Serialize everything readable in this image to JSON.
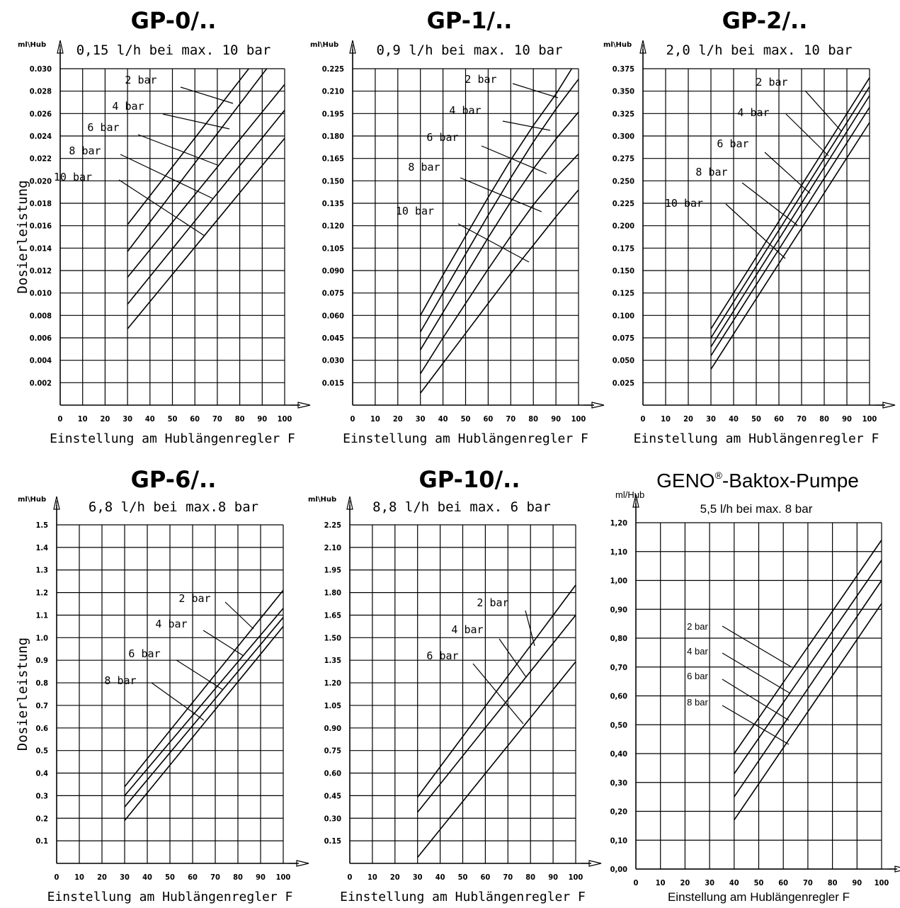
{
  "y_axis_label": "Dosierleistung",
  "chart_data": [
    {
      "type": "line",
      "title": "GP-0/..",
      "subtitle": "0,15 l/h bei max. 10 bar",
      "unit": "ml\\Hub",
      "xlabel": "Einstellung am Hublängenregler F",
      "xlim": [
        0,
        100
      ],
      "ylim": [
        0,
        0.03
      ],
      "x_ticks": [
        "0",
        "10",
        "20",
        "30",
        "40",
        "50",
        "60",
        "70",
        "80",
        "90",
        "100"
      ],
      "y_ticks": [
        "0.002",
        "0.004",
        "0.006",
        "0.008",
        "0.010",
        "0.012",
        "0.014",
        "0.016",
        "0.018",
        "0.020",
        "0.022",
        "0.024",
        "0.026",
        "0.028",
        "0.030"
      ],
      "series": [
        {
          "name": "2 bar",
          "x": [
            30,
            84
          ],
          "y": [
            0.0161,
            0.03
          ]
        },
        {
          "name": "4 bar",
          "x": [
            30,
            92
          ],
          "y": [
            0.0137,
            0.03
          ]
        },
        {
          "name": "6 bar",
          "x": [
            30,
            100
          ],
          "y": [
            0.0114,
            0.0286
          ]
        },
        {
          "name": "8 bar",
          "x": [
            30,
            100
          ],
          "y": [
            0.009,
            0.0263
          ]
        },
        {
          "name": "10 bar",
          "x": [
            30,
            100
          ],
          "y": [
            0.0068,
            0.0238
          ]
        }
      ]
    },
    {
      "type": "line",
      "title": "GP-1/..",
      "subtitle": "0,9 l/h bei max. 10 bar",
      "unit": "ml\\Hub",
      "xlabel": "Einstellung am Hublängenregler F",
      "xlim": [
        0,
        100
      ],
      "ylim": [
        0,
        0.225
      ],
      "x_ticks": [
        "0",
        "10",
        "20",
        "30",
        "40",
        "50",
        "60",
        "70",
        "80",
        "90",
        "100"
      ],
      "y_ticks": [
        "0.015",
        "0.030",
        "0.045",
        "0.060",
        "0.075",
        "0.090",
        "0.105",
        "0.120",
        "0.135",
        "0.150",
        "0.165",
        "0.180",
        "0.195",
        "0.210",
        "0.225"
      ],
      "series": [
        {
          "name": "2 bar",
          "x": [
            30,
            40,
            50,
            60,
            70,
            80,
            90,
            97
          ],
          "y": [
            0.06,
            0.087,
            0.113,
            0.139,
            0.164,
            0.187,
            0.208,
            0.225
          ]
        },
        {
          "name": "4 bar",
          "x": [
            30,
            40,
            50,
            60,
            70,
            80,
            90,
            100
          ],
          "y": [
            0.049,
            0.075,
            0.101,
            0.127,
            0.152,
            0.176,
            0.198,
            0.218
          ]
        },
        {
          "name": "6 bar",
          "x": [
            30,
            40,
            50,
            60,
            70,
            80,
            90,
            100
          ],
          "y": [
            0.037,
            0.062,
            0.087,
            0.112,
            0.136,
            0.158,
            0.178,
            0.196
          ]
        },
        {
          "name": "8 bar",
          "x": [
            30,
            40,
            50,
            60,
            70,
            80,
            90,
            100
          ],
          "y": [
            0.021,
            0.045,
            0.068,
            0.091,
            0.113,
            0.134,
            0.152,
            0.168
          ]
        },
        {
          "name": "10 bar",
          "x": [
            30,
            40,
            50,
            60,
            70,
            80,
            90,
            100
          ],
          "y": [
            0.008,
            0.028,
            0.048,
            0.068,
            0.088,
            0.107,
            0.126,
            0.144
          ]
        }
      ]
    },
    {
      "type": "line",
      "title": "GP-2/..",
      "subtitle": "2,0 l/h bei max. 10 bar",
      "unit": "ml\\Hub",
      "xlabel": "Einstellung am Hublängenregler F",
      "xlim": [
        0,
        100
      ],
      "ylim": [
        0,
        0.375
      ],
      "x_ticks": [
        "0",
        "10",
        "20",
        "30",
        "40",
        "50",
        "60",
        "70",
        "80",
        "90",
        "100"
      ],
      "y_ticks": [
        "0.025",
        "0.050",
        "0.075",
        "0.100",
        "0.125",
        "0.150",
        "0.175",
        "0.200",
        "0.225",
        "0.250",
        "0.275",
        "0.300",
        "0.325",
        "0.350",
        "0.375"
      ],
      "series": [
        {
          "name": "2 bar",
          "x": [
            30,
            100
          ],
          "y": [
            0.085,
            0.365
          ]
        },
        {
          "name": "4 bar",
          "x": [
            30,
            100
          ],
          "y": [
            0.075,
            0.355
          ]
        },
        {
          "name": "6 bar",
          "x": [
            30,
            100
          ],
          "y": [
            0.065,
            0.345
          ]
        },
        {
          "name": "8 bar",
          "x": [
            30,
            100
          ],
          "y": [
            0.055,
            0.332
          ]
        },
        {
          "name": "10 bar",
          "x": [
            30,
            100
          ],
          "y": [
            0.04,
            0.315
          ]
        }
      ]
    },
    {
      "type": "line",
      "title": "GP-6/..",
      "subtitle": "6,8 l/h bei max.8 bar",
      "unit": "ml\\Hub",
      "xlabel": "Einstellung am Hublängenregler F",
      "xlim": [
        0,
        100
      ],
      "ylim": [
        0,
        1.5
      ],
      "x_ticks": [
        "0",
        "10",
        "20",
        "30",
        "40",
        "50",
        "60",
        "70",
        "80",
        "90",
        "100"
      ],
      "y_ticks": [
        "0.1",
        "0.2",
        "0.3",
        "0.4",
        "0.5",
        "0.6",
        "0.7",
        "0.8",
        "0.9",
        "1.0",
        "1.1",
        "1.2",
        "1.3",
        "1.4",
        "1.5"
      ],
      "series": [
        {
          "name": "2 bar",
          "x": [
            30,
            100
          ],
          "y": [
            0.34,
            1.21
          ]
        },
        {
          "name": "4 bar",
          "x": [
            30,
            100
          ],
          "y": [
            0.3,
            1.13
          ]
        },
        {
          "name": "6 bar",
          "x": [
            30,
            100
          ],
          "y": [
            0.25,
            1.09
          ]
        },
        {
          "name": "8 bar",
          "x": [
            30,
            100
          ],
          "y": [
            0.19,
            1.05
          ]
        }
      ]
    },
    {
      "type": "line",
      "title": "GP-10/..",
      "subtitle": "8,8 l/h bei max. 6 bar",
      "unit": "ml\\Hub",
      "xlabel": "Einstellung am Hublängenregler F",
      "xlim": [
        0,
        100
      ],
      "ylim": [
        0,
        2.25
      ],
      "x_ticks": [
        "0",
        "10",
        "20",
        "30",
        "40",
        "50",
        "60",
        "70",
        "80",
        "90",
        "100"
      ],
      "y_ticks": [
        "0.15",
        "0.30",
        "0.45",
        "0.60",
        "0.75",
        "0.90",
        "1.05",
        "1.20",
        "1.35",
        "1.50",
        "1.65",
        "1.80",
        "1.95",
        "2.10",
        "2.25"
      ],
      "series": [
        {
          "name": "2 bar",
          "x": [
            30,
            100
          ],
          "y": [
            0.44,
            1.85
          ]
        },
        {
          "name": "4 bar",
          "x": [
            30,
            100
          ],
          "y": [
            0.34,
            1.65
          ]
        },
        {
          "name": "6 bar",
          "x": [
            30,
            100
          ],
          "y": [
            0.04,
            1.34
          ]
        }
      ]
    },
    {
      "type": "line",
      "title_main": "GENO",
      "title_reg": "®",
      "title_rest": "-Baktox-Pumpe",
      "subtitle": "5,5 l/h bei max. 8 bar",
      "unit": "ml/Hub",
      "xlabel": "Einstellung am Hublängenregler F",
      "xlim": [
        0,
        100
      ],
      "ylim": [
        0,
        1.2
      ],
      "x_ticks": [
        "0",
        "10",
        "20",
        "30",
        "40",
        "50",
        "60",
        "70",
        "80",
        "90",
        "100"
      ],
      "y_ticks": [
        "0,00",
        "0,10",
        "0,20",
        "0,30",
        "0,40",
        "0,50",
        "0,60",
        "0,70",
        "0,80",
        "0,90",
        "1,00",
        "1,10",
        "1,20"
      ],
      "series": [
        {
          "name": "2 bar",
          "x": [
            40,
            100
          ],
          "y": [
            0.4,
            1.14
          ]
        },
        {
          "name": "4 bar",
          "x": [
            40,
            100
          ],
          "y": [
            0.33,
            1.07
          ]
        },
        {
          "name": "6 bar",
          "x": [
            40,
            100
          ],
          "y": [
            0.25,
            1.0
          ]
        },
        {
          "name": "8 bar",
          "x": [
            40,
            100
          ],
          "y": [
            0.17,
            0.92
          ]
        }
      ]
    }
  ]
}
